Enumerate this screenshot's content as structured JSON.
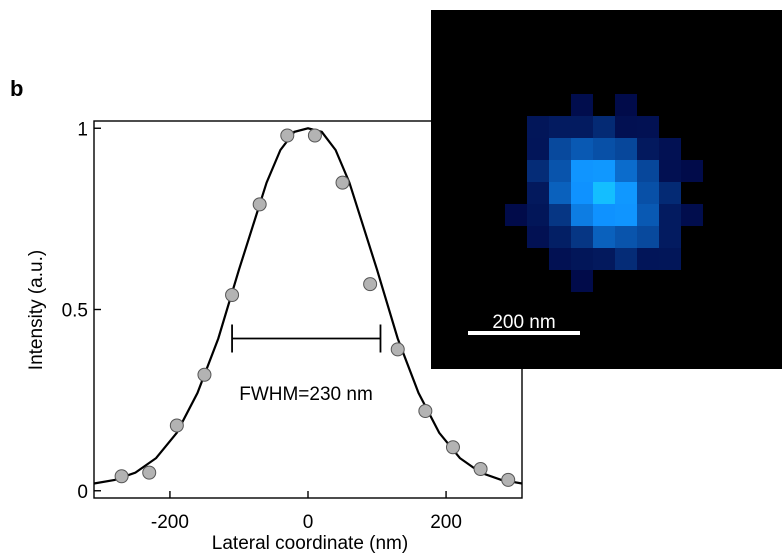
{
  "panel_label": "b",
  "chart_data": {
    "type": "scatter",
    "xlabel": "Lateral coordinate (nm)",
    "ylabel": "Intensity (a.u.)",
    "xlim": [
      -310,
      310
    ],
    "ylim": [
      -0.02,
      1.02
    ],
    "x_ticks": [
      -200,
      0,
      200
    ],
    "x_tick_labels": [
      "-200",
      "0",
      "200"
    ],
    "y_ticks": [
      0,
      0.5,
      1
    ],
    "y_tick_labels": [
      "0",
      "0.5",
      "1"
    ],
    "grid": false,
    "series": [
      {
        "kind": "points",
        "marker_color": "#b3b3b3",
        "x": [
          -270,
          -230,
          -190,
          -150,
          -110,
          -70,
          -30,
          10,
          50,
          90,
          130,
          170,
          210,
          250,
          290
        ],
        "y": [
          0.04,
          0.05,
          0.18,
          0.32,
          0.54,
          0.79,
          0.98,
          0.98,
          0.85,
          0.57,
          0.39,
          0.22,
          0.12,
          0.06,
          0.03
        ]
      },
      {
        "kind": "fit-line",
        "line_color": "#000000",
        "x": [
          -310,
          -280,
          -250,
          -220,
          -190,
          -160,
          -130,
          -100,
          -80,
          -60,
          -40,
          -20,
          0,
          20,
          40,
          60,
          80,
          100,
          130,
          160,
          190,
          220,
          250,
          280,
          310
        ],
        "y": [
          0.02,
          0.03,
          0.05,
          0.09,
          0.16,
          0.27,
          0.42,
          0.61,
          0.73,
          0.85,
          0.94,
          0.99,
          1.0,
          0.99,
          0.94,
          0.85,
          0.73,
          0.61,
          0.42,
          0.27,
          0.16,
          0.09,
          0.05,
          0.03,
          0.02
        ]
      }
    ],
    "annotation": {
      "text": "FWHM=230 nm",
      "x_start": -110,
      "x_end": 105,
      "y": 0.42
    }
  },
  "inset": {
    "scale_bar_label": "200 nm",
    "scale_bar_length_nm": 200,
    "background_color": "#000000",
    "spot_color": "#1ec8ff"
  }
}
